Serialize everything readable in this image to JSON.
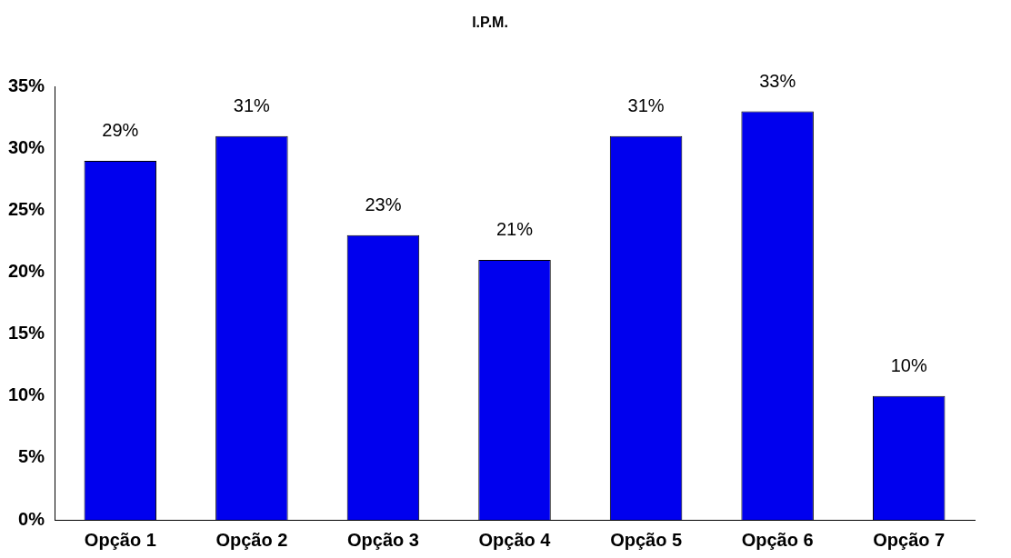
{
  "chart_data": {
    "type": "bar",
    "title": "I.P.M.",
    "categories": [
      "Opção 1",
      "Opção 2",
      "Opção 3",
      "Opção 4",
      "Opção 5",
      "Opção 6",
      "Opção 7"
    ],
    "values": [
      29,
      31,
      23,
      21,
      31,
      33,
      10
    ],
    "value_labels": [
      "29%",
      "31%",
      "23%",
      "21%",
      "31%",
      "33%",
      "10%"
    ],
    "color": "#0000ee",
    "ylim": [
      0,
      35
    ],
    "yticks": [
      {
        "value": 0,
        "label": "0%"
      },
      {
        "value": 5,
        "label": "5%"
      },
      {
        "value": 10,
        "label": "10%"
      },
      {
        "value": 15,
        "label": "15%"
      },
      {
        "value": 20,
        "label": "20%"
      },
      {
        "value": 25,
        "label": "25%"
      },
      {
        "value": 30,
        "label": "30%"
      },
      {
        "value": 35,
        "label": "35%"
      }
    ],
    "grid": false,
    "legend": false
  }
}
